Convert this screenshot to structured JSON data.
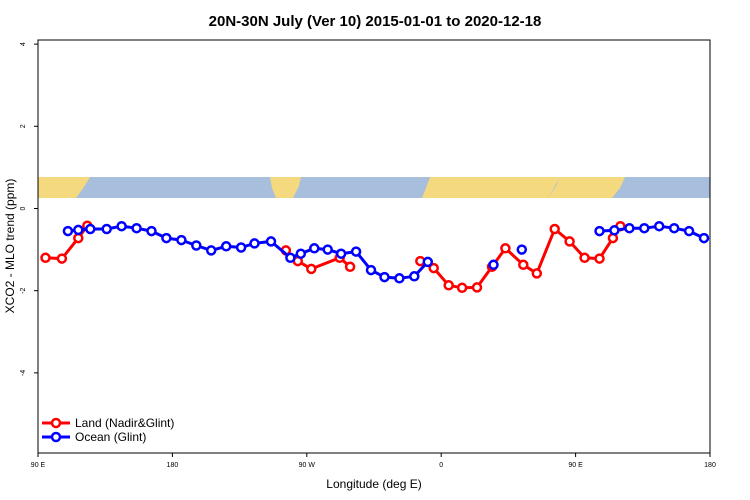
{
  "chart_data": {
    "type": "line",
    "title": "20N-30N July (Ver 10)   2015-01-01 to 2020-12-18",
    "xlabel": "Longitude (deg E)",
    "ylabel": "XCO2 - MLO trend (ppm)",
    "xlim": [
      90,
      540
    ],
    "ylim": [
      -5.95,
      4.1
    ],
    "x_ticks": [
      {
        "value": 90,
        "label": "90 E"
      },
      {
        "value": 180,
        "label": "180"
      },
      {
        "value": 270,
        "label": "90 W"
      },
      {
        "value": 360,
        "label": "0"
      },
      {
        "value": 450,
        "label": "90 E"
      },
      {
        "value": 540,
        "label": "180"
      }
    ],
    "y_ticks": [
      4,
      2,
      0,
      -2,
      -4
    ],
    "legend_position": "bottom-left",
    "series": [
      {
        "name": "Land (Nadir&Glint)",
        "color": "#ff0000",
        "segments": [
          [
            [
              95,
              -1.2
            ],
            [
              106,
              -1.22
            ],
            [
              117,
              -0.72
            ],
            [
              123,
              -0.42
            ]
          ],
          [
            [
              256,
              -1.02
            ],
            [
              264,
              -1.28
            ],
            [
              273,
              -1.47
            ],
            [
              292,
              -1.2
            ],
            [
              299,
              -1.42
            ]
          ],
          [
            [
              346,
              -1.28
            ],
            [
              355,
              -1.45
            ],
            [
              365,
              -1.87
            ],
            [
              374,
              -1.93
            ],
            [
              384,
              -1.92
            ],
            [
              394,
              -1.42
            ],
            [
              403,
              -0.97
            ],
            [
              415,
              -1.37
            ],
            [
              424,
              -1.58
            ],
            [
              436,
              -0.5
            ],
            [
              446,
              -0.8
            ],
            [
              456,
              -1.2
            ],
            [
              466,
              -1.22
            ],
            [
              475,
              -0.72
            ],
            [
              480,
              -0.43
            ]
          ]
        ]
      },
      {
        "name": "Ocean (Glint)",
        "color": "#0000ff",
        "segments": [
          [
            [
              110,
              -0.55
            ],
            [
              117,
              -0.52
            ],
            [
              125,
              -0.5
            ],
            [
              136,
              -0.5
            ],
            [
              146,
              -0.43
            ],
            [
              156,
              -0.48
            ],
            [
              166,
              -0.55
            ],
            [
              176,
              -0.72
            ],
            [
              186,
              -0.77
            ],
            [
              196,
              -0.9
            ],
            [
              206,
              -1.02
            ],
            [
              216,
              -0.92
            ],
            [
              226,
              -0.95
            ],
            [
              235,
              -0.85
            ],
            [
              246,
              -0.8
            ],
            [
              259,
              -1.2
            ],
            [
              266,
              -1.1
            ],
            [
              275,
              -0.97
            ],
            [
              284,
              -1.0
            ],
            [
              293,
              -1.1
            ],
            [
              303,
              -1.05
            ],
            [
              313,
              -1.5
            ],
            [
              322,
              -1.67
            ],
            [
              332,
              -1.7
            ],
            [
              342,
              -1.65
            ],
            [
              351,
              -1.3
            ]
          ],
          [
            [
              395,
              -1.37
            ]
          ],
          [
            [
              414,
              -1.0
            ]
          ],
          [
            [
              466,
              -0.55
            ],
            [
              476,
              -0.53
            ],
            [
              486,
              -0.48
            ],
            [
              496,
              -0.48
            ],
            [
              506,
              -0.43
            ],
            [
              516,
              -0.48
            ],
            [
              526,
              -0.55
            ],
            [
              536,
              -0.72
            ]
          ]
        ]
      }
    ]
  },
  "colors": {
    "land_band": "#f4d97e",
    "ocean_band": "#a8bedd",
    "land": "#ff0000",
    "ocean": "#0000ff"
  }
}
